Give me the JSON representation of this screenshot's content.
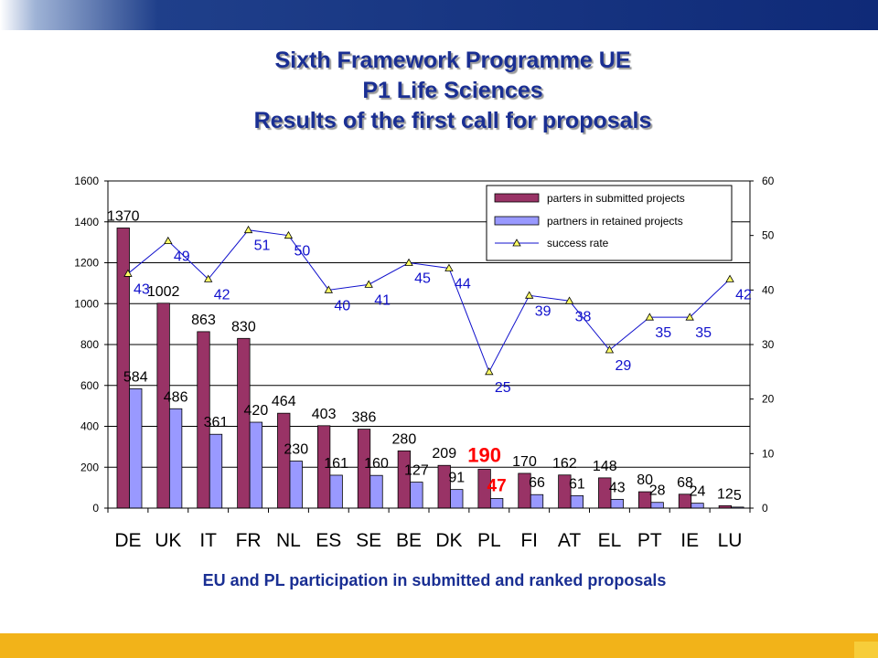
{
  "header": {
    "title_line1": "Sixth Framework Programme UE",
    "title_line2": "P1 Life Sciences",
    "title_line3": "Results of the first call for proposals"
  },
  "footer": {
    "caption": "EU and PL participation in submitted and ranked proposals"
  },
  "colors": {
    "submitted": "#993366",
    "retained": "#9999ff",
    "success": "#1111cc",
    "highlight": "#ff0000"
  },
  "chart_data": {
    "type": "bar",
    "categories": [
      "DE",
      "UK",
      "IT",
      "FR",
      "NL",
      "ES",
      "SE",
      "BE",
      "DK",
      "PL",
      "FI",
      "AT",
      "EL",
      "PT",
      "IE",
      "LU"
    ],
    "series": [
      {
        "name": "parters in submitted projects",
        "type": "bar",
        "axis": "left",
        "values": [
          1370,
          1002,
          863,
          830,
          464,
          403,
          386,
          280,
          209,
          190,
          170,
          162,
          148,
          80,
          68,
          12
        ]
      },
      {
        "name": "partners in retained projects",
        "type": "bar",
        "axis": "left",
        "values": [
          584,
          486,
          361,
          420,
          230,
          161,
          160,
          127,
          91,
          47,
          66,
          61,
          43,
          28,
          24,
          5
        ]
      },
      {
        "name": "success rate",
        "type": "line",
        "axis": "right",
        "values": [
          43,
          49,
          42,
          51,
          50,
          40,
          41,
          45,
          44,
          25,
          39,
          38,
          29,
          35,
          35,
          42
        ]
      }
    ],
    "ylim_left": [
      0,
      1600
    ],
    "ylim_right": [
      0,
      60
    ],
    "yticks_left": [
      "0",
      "200",
      "400",
      "600",
      "800",
      "1000",
      "1200",
      "1400",
      "1600"
    ],
    "yticks_right": [
      "0",
      "10",
      "20",
      "30",
      "40",
      "50",
      "60"
    ],
    "grid": true,
    "legend_position": "top-right",
    "highlight_category": "PL"
  }
}
